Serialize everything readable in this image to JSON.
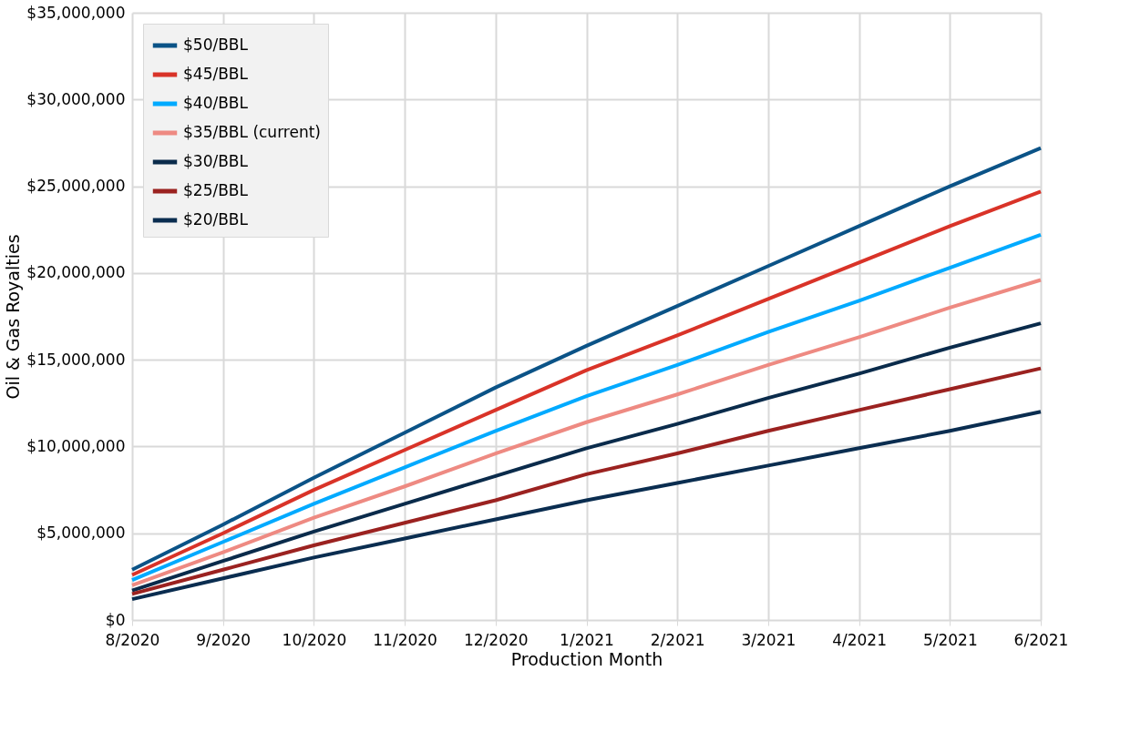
{
  "chart_data": {
    "type": "line",
    "xlabel": "Production Month",
    "ylabel": "Oil & Gas Royalties",
    "categories": [
      "8/2020",
      "9/2020",
      "10/2020",
      "11/2020",
      "12/2020",
      "1/2021",
      "2/2021",
      "3/2021",
      "4/2021",
      "5/2021",
      "6/2021"
    ],
    "series": [
      {
        "name": "$50/BBL",
        "color": "#0b5387",
        "values": [
          2900000,
          5500000,
          8200000,
          10800000,
          13400000,
          15800000,
          18100000,
          20400000,
          22700000,
          25000000,
          27200000
        ]
      },
      {
        "name": "$45/BBL",
        "color": "#d93328",
        "values": [
          2600000,
          5000000,
          7500000,
          9800000,
          12100000,
          14400000,
          16400000,
          18500000,
          20600000,
          22700000,
          24700000
        ]
      },
      {
        "name": "$40/BBL",
        "color": "#00aaff",
        "values": [
          2300000,
          4500000,
          6700000,
          8800000,
          10900000,
          12900000,
          14700000,
          16600000,
          18400000,
          20300000,
          22200000
        ]
      },
      {
        "name": "$35/BBL (current)",
        "color": "#ee8a82",
        "values": [
          2000000,
          3900000,
          5900000,
          7700000,
          9600000,
          11400000,
          13000000,
          14700000,
          16300000,
          18000000,
          19600000
        ]
      },
      {
        "name": "$30/BBL",
        "color": "#0a2b4b",
        "values": [
          1700000,
          3400000,
          5100000,
          6700000,
          8300000,
          9900000,
          11300000,
          12800000,
          14200000,
          15700000,
          17100000
        ]
      },
      {
        "name": "$25/BBL",
        "color": "#9b2220",
        "values": [
          1500000,
          2900000,
          4300000,
          5600000,
          6900000,
          8400000,
          9600000,
          10900000,
          12100000,
          13300000,
          14500000
        ]
      },
      {
        "name": "$20/BBL",
        "color": "#0a2d50",
        "values": [
          1200000,
          2400000,
          3600000,
          4700000,
          5800000,
          6900000,
          7900000,
          8900000,
          9900000,
          10900000,
          12000000
        ]
      }
    ],
    "ylim": [
      0,
      35000000
    ],
    "yticks": [
      {
        "value": 0,
        "label": "$0"
      },
      {
        "value": 5000000,
        "label": "$5,000,000"
      },
      {
        "value": 10000000,
        "label": "$10,000,000"
      },
      {
        "value": 15000000,
        "label": "$15,000,000"
      },
      {
        "value": 20000000,
        "label": "$20,000,000"
      },
      {
        "value": 25000000,
        "label": "$25,000,000"
      },
      {
        "value": 30000000,
        "label": "$30,000,000"
      },
      {
        "value": 35000000,
        "label": "$35,000,000"
      }
    ],
    "grid": true,
    "legend": "top left",
    "marker": "none",
    "line_style": "solid"
  }
}
